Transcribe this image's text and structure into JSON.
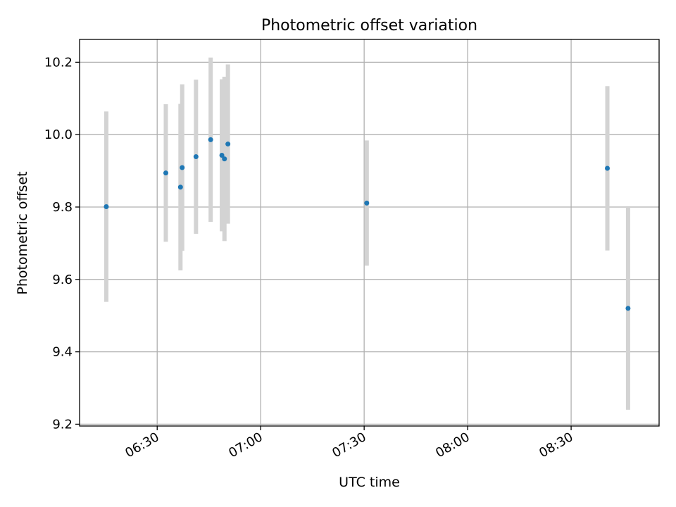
{
  "chart_data": {
    "type": "scatter",
    "title": "Photometric offset variation",
    "xlabel": "UTC time",
    "ylabel": "Photometric offset",
    "x_axis_type": "time",
    "xlim": [
      "06:07:30",
      "08:55:30"
    ],
    "ylim": [
      9.195,
      10.263
    ],
    "x_ticks": [
      "06:30",
      "07:00",
      "07:30",
      "08:00",
      "08:30"
    ],
    "y_ticks": [
      9.2,
      9.4,
      9.6,
      9.8,
      10.0,
      10.2
    ],
    "y_tick_labels": [
      "9.2",
      "9.4",
      "9.6",
      "9.8",
      "10.0",
      "10.2"
    ],
    "grid": true,
    "legend": false,
    "colors": {
      "points": "#1f77b4",
      "errorbars": "#d3d3d3",
      "grid": "#b0b0b0"
    },
    "points": [
      {
        "t": "06:15:15",
        "y": 9.801,
        "err": 0.263
      },
      {
        "t": "06:32:30",
        "y": 9.894,
        "err": 0.19
      },
      {
        "t": "06:36:45",
        "y": 9.855,
        "err": 0.23
      },
      {
        "t": "06:37:15",
        "y": 9.909,
        "err": 0.23
      },
      {
        "t": "06:41:15",
        "y": 9.939,
        "err": 0.213
      },
      {
        "t": "06:45:30",
        "y": 9.986,
        "err": 0.227
      },
      {
        "t": "06:48:45",
        "y": 9.943,
        "err": 0.21
      },
      {
        "t": "06:49:30",
        "y": 9.933,
        "err": 0.227
      },
      {
        "t": "06:50:30",
        "y": 9.974,
        "err": 0.22
      },
      {
        "t": "07:30:45",
        "y": 9.811,
        "err": 0.173
      },
      {
        "t": "08:40:30",
        "y": 9.907,
        "err": 0.227
      },
      {
        "t": "08:46:30",
        "y": 9.52,
        "err": 0.28
      }
    ]
  }
}
